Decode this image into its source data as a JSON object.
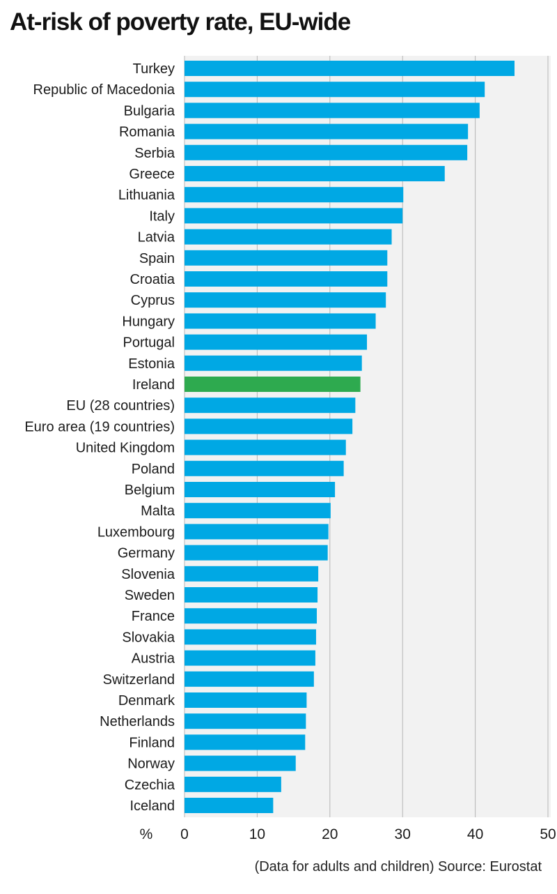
{
  "title": "At-risk of poverty rate, EU-wide",
  "source_note": "(Data for adults and children) Source: Eurostat",
  "colors": {
    "bar": "#00a8e4",
    "highlight": "#2eaa4f",
    "plot_background": "#f2f2f2",
    "gridline": "#b5b5b5"
  },
  "chart_data": {
    "type": "bar",
    "orientation": "horizontal",
    "title": "At-risk of poverty rate, EU-wide",
    "xlabel": "%",
    "ylabel": "",
    "xlim": [
      0,
      50
    ],
    "xticks": [
      0,
      10,
      20,
      30,
      40,
      50
    ],
    "grid": true,
    "highlight_category": "Ireland",
    "categories": [
      "Turkey",
      "Republic of Macedonia",
      "Bulgaria",
      "Romania",
      "Serbia",
      "Greece",
      "Lithuania",
      "Italy",
      "Latvia",
      "Spain",
      "Croatia",
      "Cyprus",
      "Hungary",
      "Portugal",
      "Estonia",
      "Ireland",
      "EU (28 countries)",
      "Euro area (19 countries)",
      "United Kingdom",
      "Poland",
      "Belgium",
      "Malta",
      "Luxembourg",
      "Germany",
      "Slovenia",
      "Sweden",
      "France",
      "Slovakia",
      "Austria",
      "Switzerland",
      "Denmark",
      "Netherlands",
      "Finland",
      "Norway",
      "Czechia",
      "Iceland"
    ],
    "values": [
      45.4,
      41.3,
      40.6,
      39.0,
      38.9,
      35.8,
      30.1,
      30.0,
      28.5,
      27.9,
      27.9,
      27.7,
      26.3,
      25.1,
      24.4,
      24.2,
      23.5,
      23.1,
      22.2,
      21.9,
      20.7,
      20.1,
      19.8,
      19.7,
      18.4,
      18.3,
      18.2,
      18.1,
      18.0,
      17.8,
      16.8,
      16.7,
      16.6,
      15.3,
      13.3,
      12.2
    ]
  }
}
